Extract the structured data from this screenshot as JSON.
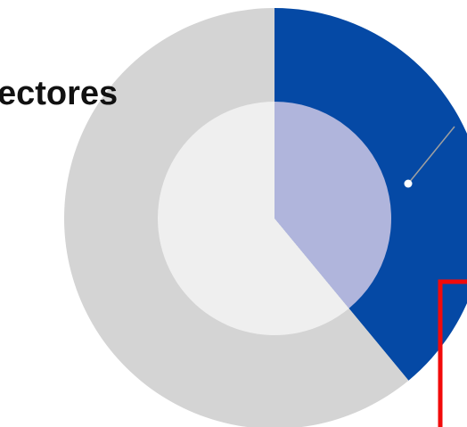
{
  "chart_data": {
    "type": "pie",
    "title": "ectores",
    "outer_ring": {
      "slices": [
        {
          "value": 39,
          "color": "#0549A5"
        },
        {
          "value": 61,
          "color": "#D4D4D4"
        }
      ]
    },
    "inner_disc": {
      "slices": [
        {
          "value": 39,
          "color": "#B0B5DC"
        },
        {
          "value": 61,
          "color": "#EFEFEF"
        }
      ]
    },
    "highlight_box_color": "#F20A0A",
    "leader_line_color": "#A0A0A0"
  }
}
